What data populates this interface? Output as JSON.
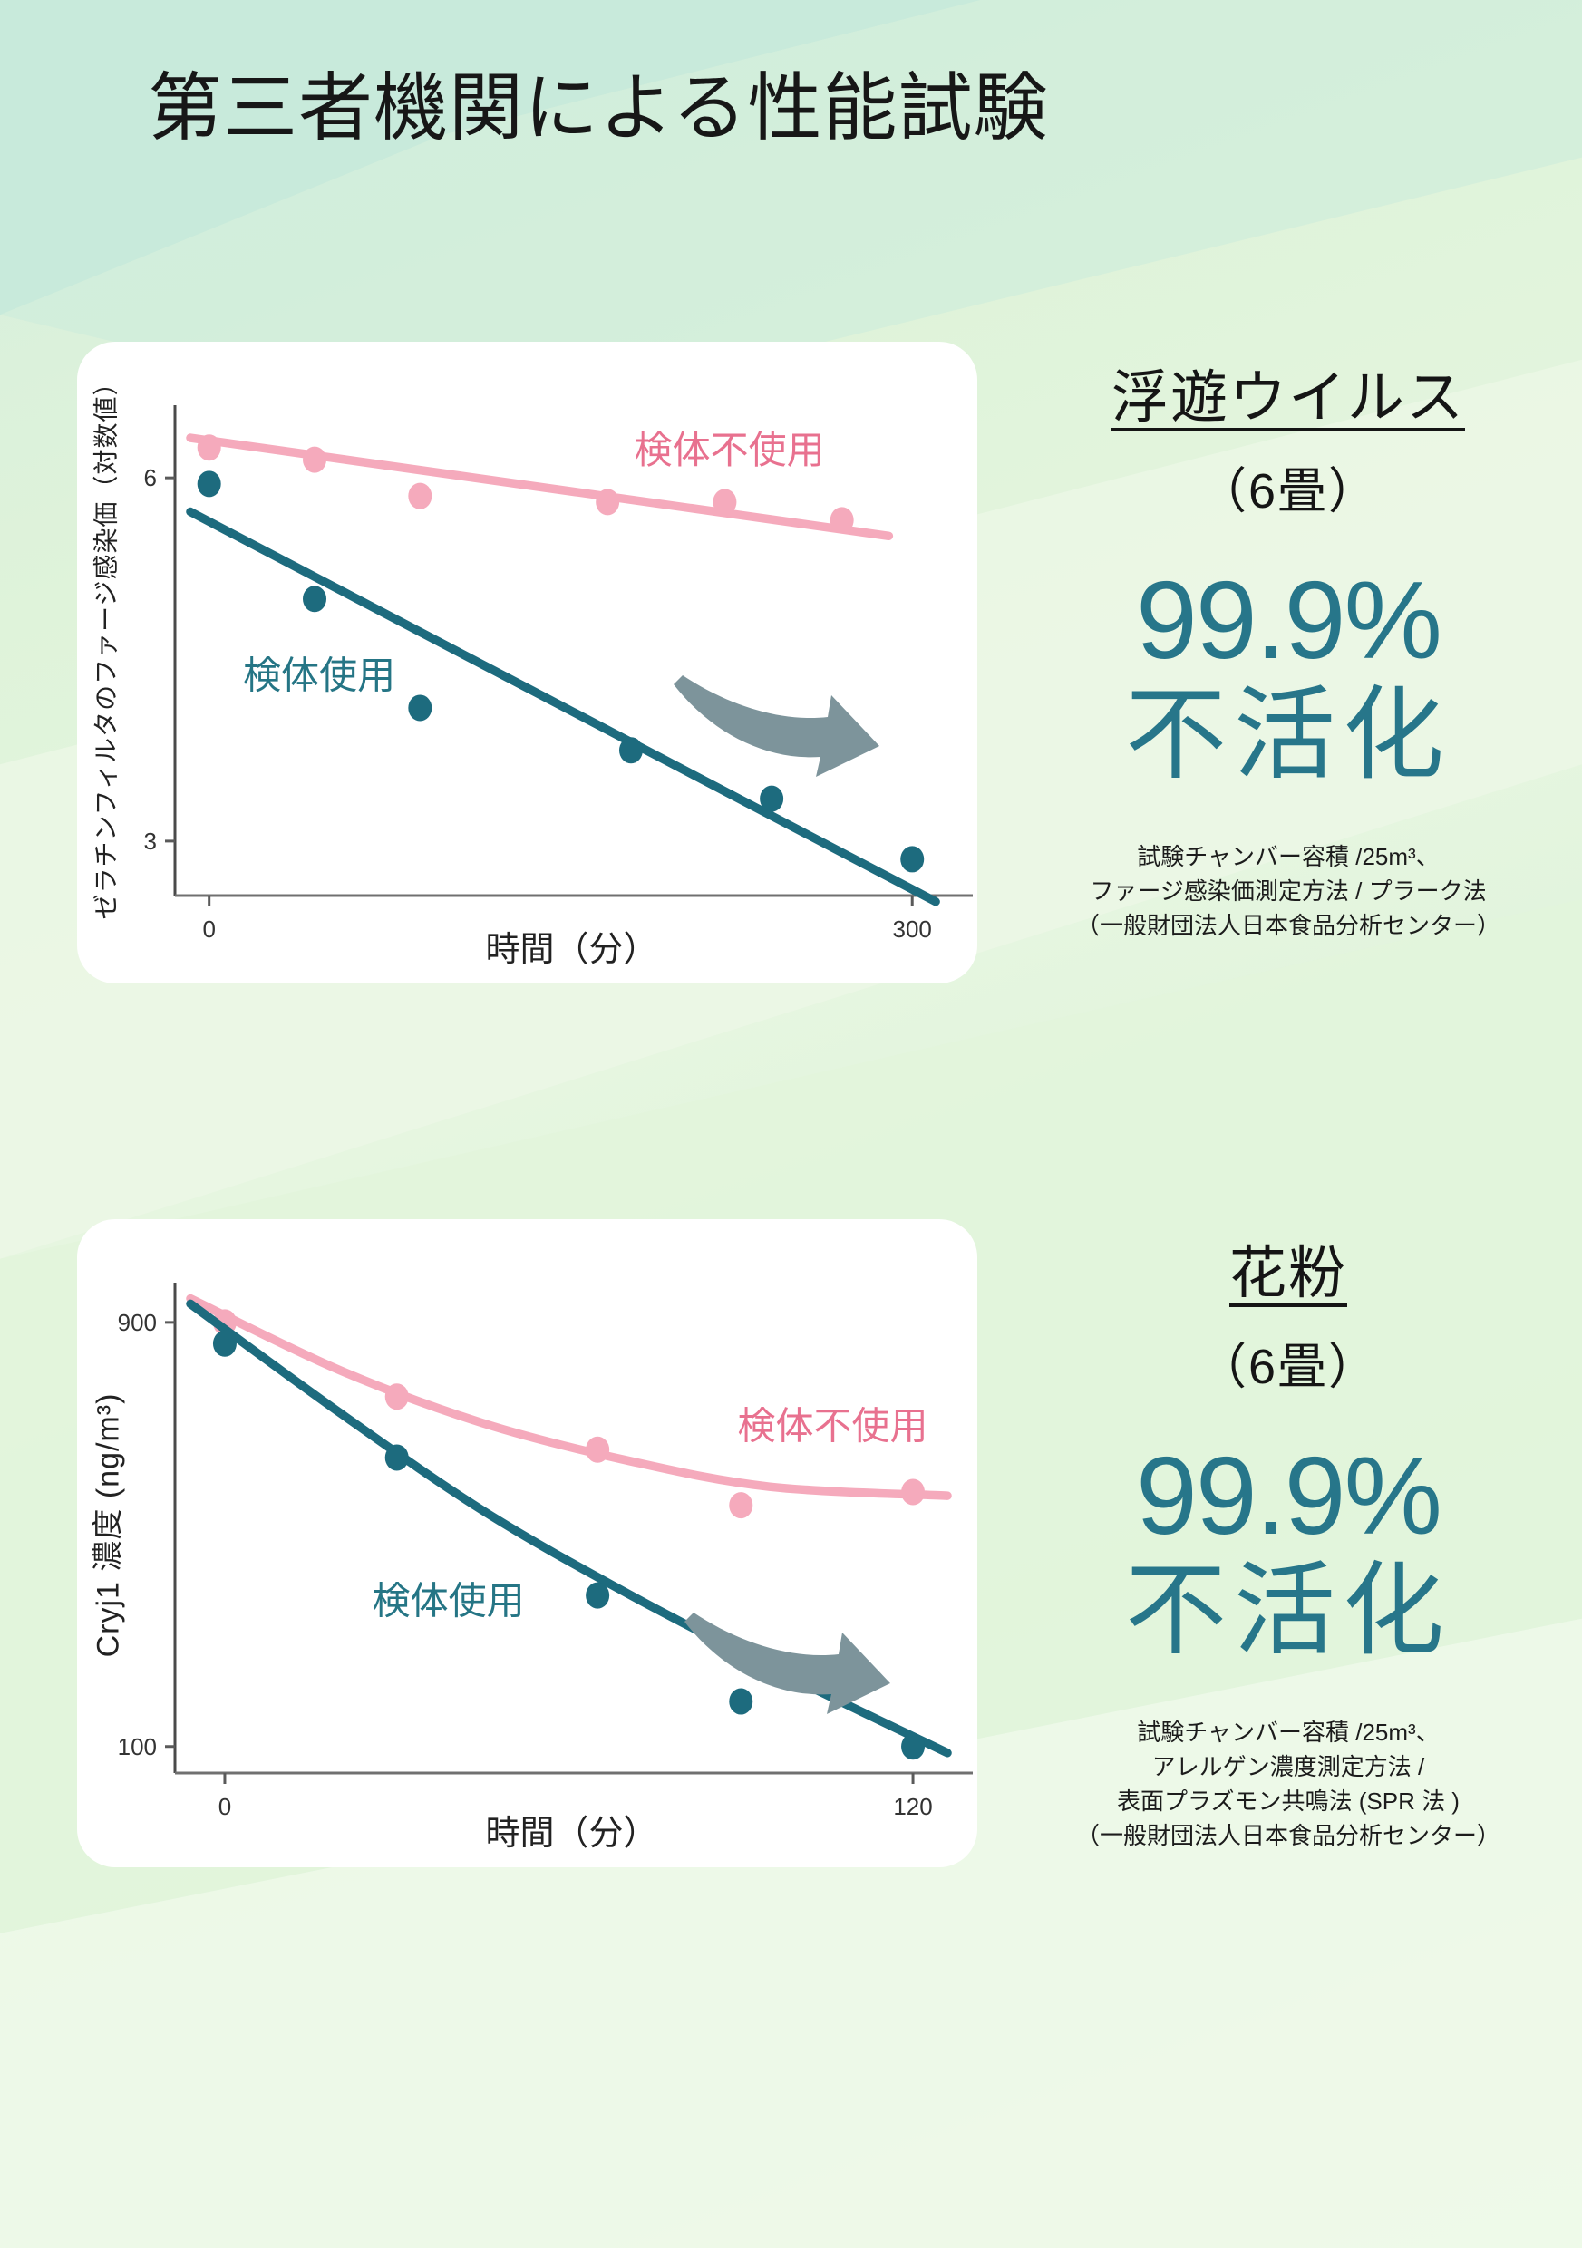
{
  "page": {
    "title": "第三者機関による性能試験"
  },
  "colors": {
    "teal": "#1d6b7e",
    "teal_text": "#257585",
    "teal_big": "#27768a",
    "pink": "#f5aabc",
    "pink_text": "#e8718f",
    "arrow": "#7d949b",
    "axis": "#5a5a5a",
    "tick_text": "#333333"
  },
  "results": [
    {
      "heading": "浮遊ウイルス",
      "room": "（6畳）",
      "value": "99.9%",
      "effect": "不活化",
      "notes": [
        "試験チャンバー容積 /25m³、",
        "ファージ感染価測定方法 / プラーク法",
        "（一般財団法人日本食品分析センター）"
      ]
    },
    {
      "heading": "花粉",
      "room": "（6畳）",
      "value": "99.9%",
      "effect": "不活化",
      "notes": [
        "試験チャンバー容積 /25m³、",
        "アレルゲン濃度測定方法 /",
        "表面プラズモン共鳴法 (SPR 法 )",
        "（一般財団法人日本食品分析センター）"
      ]
    }
  ],
  "chart_data": [
    {
      "type": "scatter",
      "context": "airborne-virus-test",
      "ylabel": "ゼラチンフィルタのファージ感染価（対数値）",
      "xlabel": "時間（分）",
      "xlim": [
        -8,
        315
      ],
      "ylim": [
        2.55,
        6.6
      ],
      "xticks": [
        {
          "v": 0,
          "label": "0"
        },
        {
          "v": 300,
          "label": "300"
        }
      ],
      "yticks": [
        {
          "v": 6,
          "label": "6"
        },
        {
          "v": 3,
          "label": "3"
        }
      ],
      "legend_position": "inline-labels",
      "grid": false,
      "series": [
        {
          "name": "検体不使用",
          "color": "pink",
          "x": [
            0,
            45,
            90,
            170,
            220,
            270
          ],
          "y": [
            6.25,
            6.15,
            5.85,
            5.8,
            5.8,
            5.65
          ],
          "trend": [
            [
              -8,
              6.33
            ],
            [
              290,
              5.52
            ]
          ],
          "label_pos": [
            222,
            6.12
          ]
        },
        {
          "name": "検体使用",
          "color": "teal",
          "x": [
            0,
            45,
            90,
            180,
            240,
            300
          ],
          "y": [
            5.95,
            5.0,
            4.1,
            3.75,
            3.35,
            2.85
          ],
          "trend": [
            [
              -8,
              5.72
            ],
            [
              310,
              2.5
            ]
          ],
          "label_pos": [
            47,
            4.26
          ]
        }
      ]
    },
    {
      "type": "scatter",
      "context": "pollen-test",
      "ylabel": "Cryj1 濃度 (ng/m³)",
      "xlabel": "時間（分）",
      "xlim": [
        -6,
        126
      ],
      "ylim": [
        50,
        975
      ],
      "xticks": [
        {
          "v": 0,
          "label": "0"
        },
        {
          "v": 120,
          "label": "120"
        }
      ],
      "yticks": [
        {
          "v": 900,
          "label": "900"
        },
        {
          "v": 100,
          "label": "100"
        }
      ],
      "legend_position": "inline-labels",
      "grid": false,
      "series": [
        {
          "name": "検体不使用",
          "color": "pink",
          "x": [
            0,
            30,
            65,
            90,
            120
          ],
          "y": [
            900,
            760,
            660,
            555,
            580
          ],
          "trend": [
            [
              -6,
              945
            ],
            [
              20,
              810
            ],
            [
              45,
              710
            ],
            [
              70,
              640
            ],
            [
              95,
              590
            ],
            [
              126,
              573
            ]
          ],
          "label_pos": [
            106,
            680
          ]
        },
        {
          "name": "検体使用",
          "color": "teal",
          "x": [
            0,
            30,
            65,
            90,
            120
          ],
          "y": [
            860,
            645,
            385,
            185,
            100
          ],
          "trend": [
            [
              -6,
              935
            ],
            [
              20,
              730
            ],
            [
              45,
              545
            ],
            [
              70,
              390
            ],
            [
              95,
              250
            ],
            [
              126,
              88
            ]
          ],
          "label_pos": [
            39,
            350
          ]
        }
      ]
    }
  ]
}
